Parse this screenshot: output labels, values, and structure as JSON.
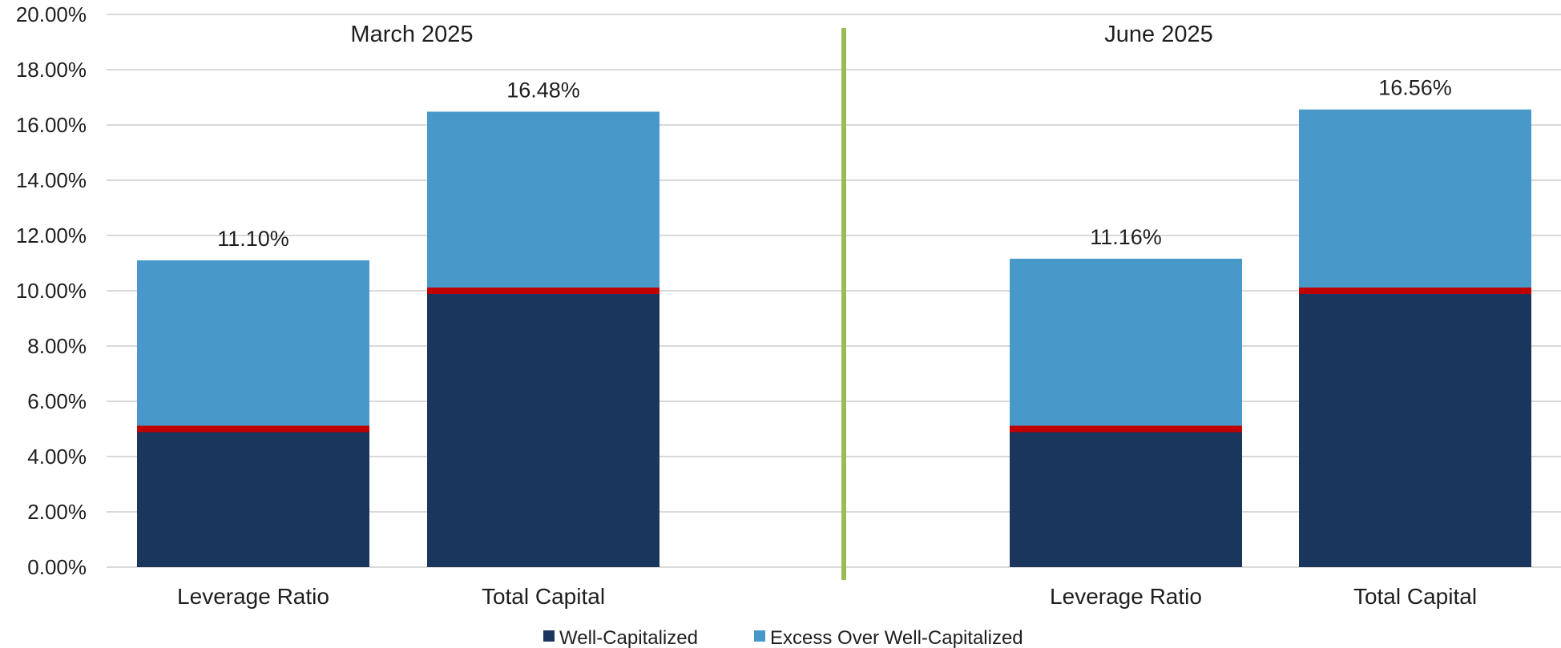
{
  "chart_data": {
    "type": "bar",
    "stacked": true,
    "y_axis": {
      "min": 0,
      "max": 20,
      "step": 2,
      "tick_labels": [
        "0.00%",
        "2.00%",
        "4.00%",
        "6.00%",
        "8.00%",
        "10.00%",
        "12.00%",
        "14.00%",
        "16.00%",
        "18.00%",
        "20.00%"
      ]
    },
    "grid": true,
    "legend_position": "bottom",
    "groups": [
      {
        "label": "March 2025",
        "bars": [
          {
            "category": "Leverage Ratio",
            "well_capitalized": 5.0,
            "excess": 6.1,
            "total_label": "11.10%",
            "threshold": 5.0
          },
          {
            "category": "Total Capital",
            "well_capitalized": 10.0,
            "excess": 6.48,
            "total_label": "16.48%",
            "threshold": 10.0
          }
        ]
      },
      {
        "label": "June 2025",
        "bars": [
          {
            "category": "Leverage Ratio",
            "well_capitalized": 5.0,
            "excess": 6.16,
            "total_label": "11.16%",
            "threshold": 5.0
          },
          {
            "category": "Total Capital",
            "well_capitalized": 10.0,
            "excess": 6.56,
            "total_label": "16.56%",
            "threshold": 10.0
          }
        ]
      }
    ],
    "series": [
      {
        "name": "Well-Capitalized",
        "color": "#1a365d"
      },
      {
        "name": "Excess Over Well-Capitalized",
        "color": "#4899c9"
      }
    ],
    "threshold_line_color": "#c00000",
    "divider_color": "#9bbb59"
  }
}
